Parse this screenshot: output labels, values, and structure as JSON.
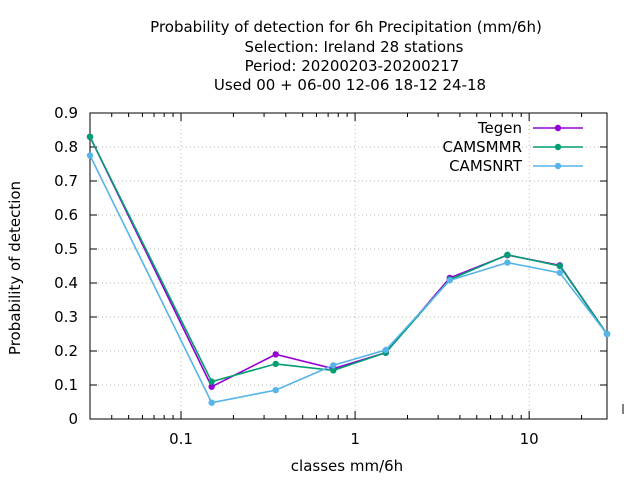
{
  "chart_data": {
    "type": "line",
    "title_lines": [
      "Probability of detection  for 6h Precipitation (mm/6h)",
      "Selection: Ireland      28 stations",
      "Period: 20200203-20200217",
      "Used  00 + 06-00 12-06 18-12 24-18"
    ],
    "xlabel": "classes mm/6h",
    "ylabel": "Probability of detection",
    "x_scale": "log",
    "xlim": [
      0.03,
      28
    ],
    "ylim": [
      0,
      0.9
    ],
    "x_ticks": [
      0.1,
      1,
      10
    ],
    "x_tick_labels": [
      "0.1",
      "1",
      "10"
    ],
    "y_ticks": [
      0,
      0.1,
      0.2,
      0.3,
      0.4,
      0.5,
      0.6,
      0.7,
      0.8,
      0.9
    ],
    "y_tick_labels": [
      "0",
      "0.1",
      "0.2",
      "0.3",
      "0.4",
      "0.5",
      "0.6",
      "0.7",
      "0.8",
      "0.9"
    ],
    "grid": true,
    "legend_position": "top-right",
    "x": [
      0.03,
      0.15,
      0.35,
      0.75,
      1.5,
      3.5,
      7.5,
      15,
      28
    ],
    "series": [
      {
        "name": "Tegen",
        "color": "#9400d3",
        "values": [
          0.83,
          0.095,
          0.19,
          0.148,
          0.195,
          0.415,
          0.482,
          0.452,
          0.25
        ]
      },
      {
        "name": "CAMSMMR",
        "color": "#009e73",
        "values": [
          0.83,
          0.11,
          0.162,
          0.143,
          0.195,
          0.41,
          0.483,
          0.45,
          0.25
        ]
      },
      {
        "name": "CAMSNRT",
        "color": "#56b4e9",
        "values": [
          0.775,
          0.048,
          0.085,
          0.158,
          0.203,
          0.408,
          0.46,
          0.43,
          0.25
        ]
      }
    ]
  }
}
